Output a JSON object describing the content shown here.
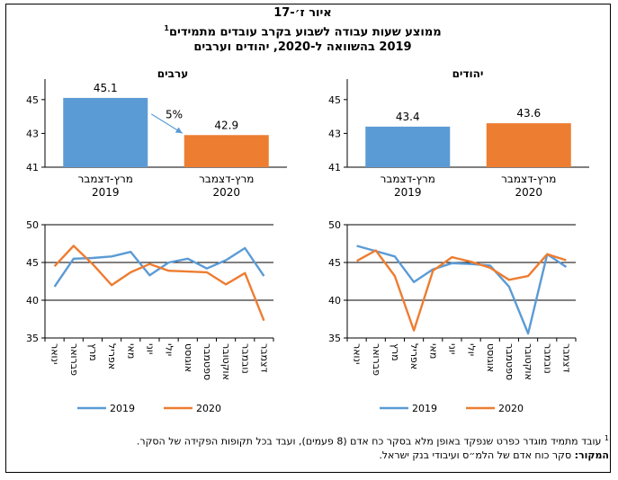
{
  "header": {
    "line1": "איור ז׳-17",
    "line2": "ממוצע שעות עבודה לשבוע בקרב עובדים מתמידים",
    "line2_sup": "1",
    "line3": "2019 בהשוואה ל-2020, יהודים וערבים"
  },
  "colors": {
    "s2019": "#5b9bd5",
    "s2020": "#ed7d31",
    "arrow": "#5b9bd5"
  },
  "chart_data": [
    {
      "id": "arabs_bar",
      "type": "bar",
      "title": "ערבים",
      "categories": [
        "מרץ-דצמבר 2019",
        "מרץ-דצמבר 2020"
      ],
      "category_lines": [
        [
          "מרץ-דצמבר",
          "2019"
        ],
        [
          "מרץ-דצמבר",
          "2020"
        ]
      ],
      "values": [
        45.1,
        42.9
      ],
      "labels": [
        "45.1",
        "42.9"
      ],
      "ylim": [
        41,
        46
      ],
      "yticks": [
        "45",
        "43",
        "41"
      ],
      "annotation": "5%"
    },
    {
      "id": "jews_bar",
      "type": "bar",
      "title": "יהודים",
      "categories": [
        "מרץ-דצמבר 2019",
        "מרץ-דצמבר 2020"
      ],
      "category_lines": [
        [
          "מרץ-דצמבר",
          "2019"
        ],
        [
          "מרץ-דצמבר",
          "2020"
        ]
      ],
      "values": [
        43.4,
        43.6
      ],
      "labels": [
        "43.4",
        "43.6"
      ],
      "ylim": [
        41,
        46
      ],
      "yticks": [
        "45",
        "43",
        "41"
      ]
    },
    {
      "id": "arabs_line",
      "type": "line",
      "x": [
        "ינואר",
        "פברואר",
        "מרץ",
        "אפריל",
        "מאי",
        "יוני",
        "יולי",
        "אוגוסט",
        "ספטמבר",
        "אוקטובר",
        "נובמבר",
        "דצמבר"
      ],
      "series": [
        {
          "name": "2019",
          "values": [
            41.8,
            45.5,
            45.6,
            45.8,
            46.4,
            43.3,
            45.0,
            45.5,
            44.2,
            45.3,
            46.9,
            43.2
          ]
        },
        {
          "name": "2020",
          "values": [
            44.5,
            47.2,
            44.8,
            42.0,
            43.7,
            44.8,
            43.9,
            43.8,
            43.7,
            42.1,
            43.6,
            37.3
          ]
        }
      ],
      "ylim": [
        35,
        50
      ],
      "yticks": [
        "50",
        "45",
        "40",
        "35"
      ]
    },
    {
      "id": "jews_line",
      "type": "line",
      "x": [
        "ינואר",
        "פברואר",
        "מרץ",
        "אפריל",
        "מאי",
        "יוני",
        "יולי",
        "אוגוסט",
        "ספטמבר",
        "אוקטובר",
        "נובמבר",
        "דצמבר"
      ],
      "series": [
        {
          "name": "2019",
          "values": [
            47.2,
            46.5,
            45.8,
            42.4,
            44.1,
            44.9,
            44.8,
            44.6,
            41.8,
            35.6,
            46.1,
            44.4
          ]
        },
        {
          "name": "2020",
          "values": [
            45.2,
            46.6,
            43.2,
            36.0,
            43.9,
            45.7,
            45.1,
            44.3,
            42.7,
            43.2,
            46.1,
            45.3
          ]
        }
      ],
      "ylim": [
        35,
        50
      ],
      "yticks": [
        "50",
        "45",
        "40",
        "35"
      ]
    }
  ],
  "legend": {
    "label_2019": "2019",
    "label_2020": "2020"
  },
  "footnote": {
    "note_marker": "1",
    "note_text": "עובד מתמיד מוגדר כפרט שנפקד באופן מלא בסקר כח אדם (8 פעמים), ועבד בכל תקופות הפקידה של הסקר.",
    "source_label": "המקור:",
    "source_text": "סקר כוח אדם של הלמ״ס ועיבודי בנק ישראל."
  }
}
